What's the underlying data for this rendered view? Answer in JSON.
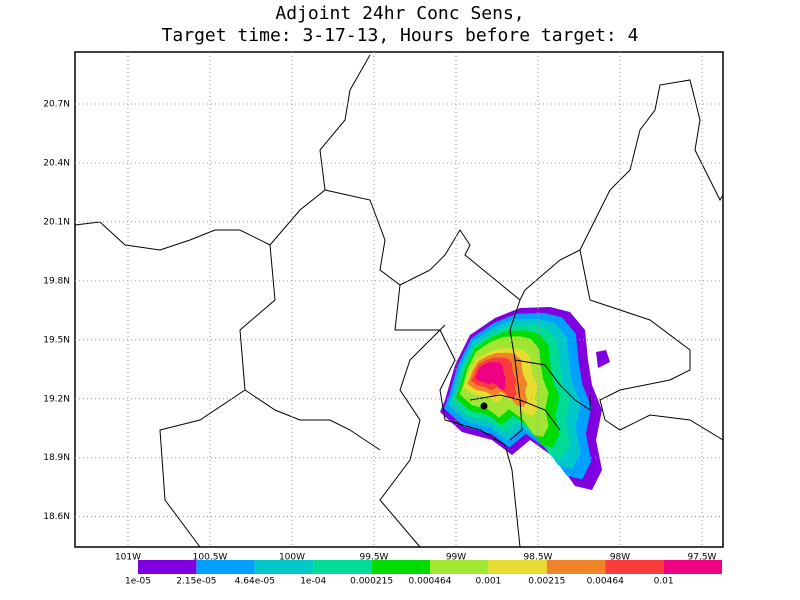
{
  "map": {
    "title_line1": "Adjoint 24hr Conc Sens,",
    "title_line2": "Target time: 3-17-13, Hours before target: 4",
    "lat_ticks": [
      {
        "value": 20.7,
        "label": "20.7N"
      },
      {
        "value": 20.4,
        "label": "20.4N"
      },
      {
        "value": 20.1,
        "label": "20.1N"
      },
      {
        "value": 19.8,
        "label": "19.8N"
      },
      {
        "value": 19.5,
        "label": "19.5N"
      },
      {
        "value": 19.2,
        "label": "19.2N"
      },
      {
        "value": 18.9,
        "label": "18.9N"
      },
      {
        "value": 18.6,
        "label": "18.6N"
      }
    ],
    "lon_ticks": [
      {
        "value": -101,
        "label": "101W"
      },
      {
        "value": -100.5,
        "label": "100.5W"
      },
      {
        "value": -100,
        "label": "100W"
      },
      {
        "value": -99.5,
        "label": "99.5W"
      },
      {
        "value": -99,
        "label": "99W"
      },
      {
        "value": -98.5,
        "label": "98.5W"
      },
      {
        "value": -98,
        "label": "98W"
      },
      {
        "value": -97.5,
        "label": "97.5W"
      }
    ],
    "colorbar": {
      "colors": [
        "#8000e0",
        "#00a0ff",
        "#00c8c8",
        "#00dc96",
        "#00dc00",
        "#a0e632",
        "#e6dc32",
        "#f08228",
        "#fa3c3c",
        "#f00082"
      ],
      "levels": [
        {
          "value": 1e-05,
          "label": "1e-05"
        },
        {
          "value": 2.15e-05,
          "label": "2.15e-05"
        },
        {
          "value": 4.64e-05,
          "label": "4.64e-05"
        },
        {
          "value": 0.0001,
          "label": "1e-04"
        },
        {
          "value": 0.000215,
          "label": "0.000215"
        },
        {
          "value": 0.000464,
          "label": "0.000464"
        },
        {
          "value": 0.001,
          "label": "0.001"
        },
        {
          "value": 0.00215,
          "label": "0.00215"
        },
        {
          "value": 0.00464,
          "label": "0.00464"
        },
        {
          "value": 0.01,
          "label": "0.01"
        }
      ]
    }
  }
}
